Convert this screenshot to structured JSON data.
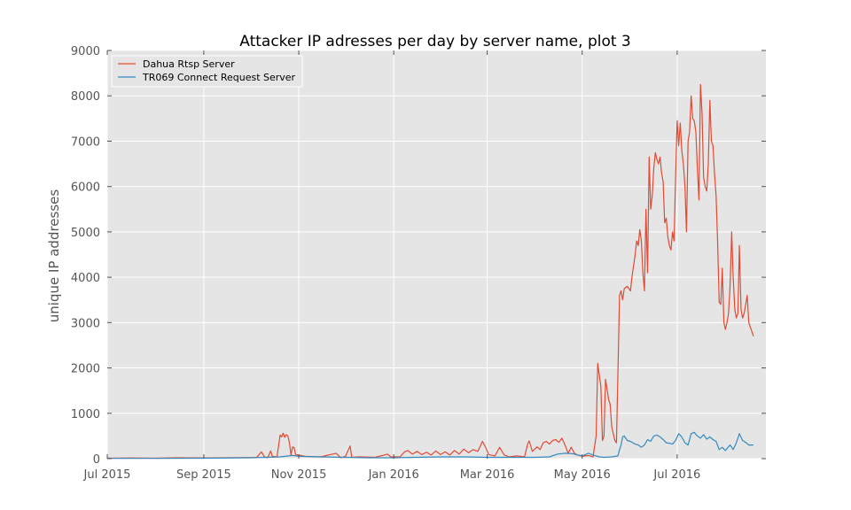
{
  "chart_data": {
    "type": "line",
    "title": "Attacker IP adresses per day by server name, plot 3",
    "xlabel": "",
    "ylabel": "unique IP addresses",
    "xlim": [
      "2015-07-01",
      "2016-08-27"
    ],
    "ylim": [
      0,
      9000
    ],
    "yticks": [
      0,
      1000,
      2000,
      3000,
      4000,
      5000,
      6000,
      7000,
      8000,
      9000
    ],
    "xticks": [
      {
        "date": "2015-07-01",
        "label": "Jul 2015"
      },
      {
        "date": "2015-09-01",
        "label": "Sep 2015"
      },
      {
        "date": "2015-11-01",
        "label": "Nov 2015"
      },
      {
        "date": "2016-01-01",
        "label": "Jan 2016"
      },
      {
        "date": "2016-03-01",
        "label": "Mar 2016"
      },
      {
        "date": "2016-05-01",
        "label": "May 2016"
      },
      {
        "date": "2016-07-01",
        "label": "Jul 2016"
      }
    ],
    "grid": true,
    "background": "#e5e5e5",
    "legend_position": "top-left",
    "series": [
      {
        "name": "Dahua Rtsp Server",
        "color": "#e24a33",
        "points": [
          [
            "2015-07-01",
            10
          ],
          [
            "2015-07-15",
            15
          ],
          [
            "2015-08-01",
            10
          ],
          [
            "2015-08-15",
            20
          ],
          [
            "2015-09-01",
            15
          ],
          [
            "2015-09-15",
            20
          ],
          [
            "2015-10-01",
            25
          ],
          [
            "2015-10-05",
            30
          ],
          [
            "2015-10-08",
            150
          ],
          [
            "2015-10-10",
            40
          ],
          [
            "2015-10-12",
            20
          ],
          [
            "2015-10-14",
            170
          ],
          [
            "2015-10-15",
            50
          ],
          [
            "2015-10-18",
            40
          ],
          [
            "2015-10-20",
            520
          ],
          [
            "2015-10-21",
            480
          ],
          [
            "2015-10-22",
            560
          ],
          [
            "2015-10-23",
            470
          ],
          [
            "2015-10-24",
            530
          ],
          [
            "2015-10-25",
            500
          ],
          [
            "2015-10-26",
            350
          ],
          [
            "2015-10-27",
            80
          ],
          [
            "2015-10-28",
            260
          ],
          [
            "2015-10-29",
            240
          ],
          [
            "2015-10-30",
            90
          ],
          [
            "2015-11-05",
            50
          ],
          [
            "2015-11-15",
            40
          ],
          [
            "2015-11-25",
            120
          ],
          [
            "2015-11-28",
            20
          ],
          [
            "2015-12-01",
            50
          ],
          [
            "2015-12-04",
            280
          ],
          [
            "2015-12-05",
            30
          ],
          [
            "2015-12-10",
            40
          ],
          [
            "2015-12-20",
            30
          ],
          [
            "2015-12-28",
            100
          ],
          [
            "2015-12-30",
            40
          ],
          [
            "2016-01-05",
            40
          ],
          [
            "2016-01-08",
            150
          ],
          [
            "2016-01-10",
            180
          ],
          [
            "2016-01-13",
            100
          ],
          [
            "2016-01-16",
            160
          ],
          [
            "2016-01-19",
            90
          ],
          [
            "2016-01-22",
            140
          ],
          [
            "2016-01-25",
            80
          ],
          [
            "2016-01-28",
            170
          ],
          [
            "2016-01-31",
            90
          ],
          [
            "2016-02-03",
            150
          ],
          [
            "2016-02-06",
            80
          ],
          [
            "2016-02-09",
            180
          ],
          [
            "2016-02-12",
            100
          ],
          [
            "2016-02-15",
            210
          ],
          [
            "2016-02-18",
            130
          ],
          [
            "2016-02-21",
            200
          ],
          [
            "2016-02-24",
            160
          ],
          [
            "2016-02-27",
            380
          ],
          [
            "2016-02-29",
            250
          ],
          [
            "2016-03-02",
            90
          ],
          [
            "2016-03-06",
            60
          ],
          [
            "2016-03-09",
            250
          ],
          [
            "2016-03-12",
            80
          ],
          [
            "2016-03-15",
            40
          ],
          [
            "2016-03-20",
            60
          ],
          [
            "2016-03-25",
            40
          ],
          [
            "2016-03-27",
            330
          ],
          [
            "2016-03-28",
            390
          ],
          [
            "2016-03-30",
            160
          ],
          [
            "2016-04-02",
            260
          ],
          [
            "2016-04-04",
            200
          ],
          [
            "2016-04-06",
            350
          ],
          [
            "2016-04-08",
            380
          ],
          [
            "2016-04-10",
            320
          ],
          [
            "2016-04-12",
            400
          ],
          [
            "2016-04-14",
            420
          ],
          [
            "2016-04-16",
            360
          ],
          [
            "2016-04-18",
            450
          ],
          [
            "2016-04-20",
            300
          ],
          [
            "2016-04-22",
            120
          ],
          [
            "2016-04-24",
            250
          ],
          [
            "2016-04-26",
            120
          ],
          [
            "2016-04-28",
            80
          ],
          [
            "2016-05-01",
            50
          ],
          [
            "2016-05-05",
            70
          ],
          [
            "2016-05-08",
            40
          ],
          [
            "2016-05-10",
            500
          ],
          [
            "2016-05-11",
            2100
          ],
          [
            "2016-05-13",
            1600
          ],
          [
            "2016-05-14",
            400
          ],
          [
            "2016-05-15",
            500
          ],
          [
            "2016-05-16",
            1750
          ],
          [
            "2016-05-18",
            1300
          ],
          [
            "2016-05-19",
            1200
          ],
          [
            "2016-05-20",
            700
          ],
          [
            "2016-05-22",
            400
          ],
          [
            "2016-05-23",
            350
          ],
          [
            "2016-05-25",
            3600
          ],
          [
            "2016-05-26",
            3700
          ],
          [
            "2016-05-27",
            3500
          ],
          [
            "2016-05-28",
            3750
          ],
          [
            "2016-05-30",
            3800
          ],
          [
            "2016-06-01",
            3700
          ],
          [
            "2016-06-02",
            4000
          ],
          [
            "2016-06-04",
            4500
          ],
          [
            "2016-06-05",
            4800
          ],
          [
            "2016-06-06",
            4700
          ],
          [
            "2016-06-07",
            5050
          ],
          [
            "2016-06-08",
            4800
          ],
          [
            "2016-06-09",
            4100
          ],
          [
            "2016-06-10",
            3700
          ],
          [
            "2016-06-11",
            5500
          ],
          [
            "2016-06-12",
            4100
          ],
          [
            "2016-06-13",
            6650
          ],
          [
            "2016-06-14",
            5500
          ],
          [
            "2016-06-15",
            5800
          ],
          [
            "2016-06-16",
            6400
          ],
          [
            "2016-06-17",
            6750
          ],
          [
            "2016-06-18",
            6600
          ],
          [
            "2016-06-19",
            6500
          ],
          [
            "2016-06-20",
            6650
          ],
          [
            "2016-06-21",
            6300
          ],
          [
            "2016-06-22",
            6100
          ],
          [
            "2016-06-23",
            5200
          ],
          [
            "2016-06-24",
            5300
          ],
          [
            "2016-06-25",
            4900
          ],
          [
            "2016-06-26",
            4700
          ],
          [
            "2016-06-27",
            4600
          ],
          [
            "2016-06-28",
            5000
          ],
          [
            "2016-06-29",
            4800
          ],
          [
            "2016-06-30",
            6200
          ],
          [
            "2016-07-01",
            7450
          ],
          [
            "2016-07-02",
            6900
          ],
          [
            "2016-07-03",
            7400
          ],
          [
            "2016-07-04",
            6800
          ],
          [
            "2016-07-05",
            6500
          ],
          [
            "2016-07-06",
            6000
          ],
          [
            "2016-07-07",
            5000
          ],
          [
            "2016-07-08",
            7000
          ],
          [
            "2016-07-09",
            7200
          ],
          [
            "2016-07-10",
            8000
          ],
          [
            "2016-07-11",
            7500
          ],
          [
            "2016-07-12",
            7450
          ],
          [
            "2016-07-13",
            7200
          ],
          [
            "2016-07-14",
            6400
          ],
          [
            "2016-07-15",
            5700
          ],
          [
            "2016-07-16",
            8250
          ],
          [
            "2016-07-17",
            7600
          ],
          [
            "2016-07-18",
            6200
          ],
          [
            "2016-07-19",
            6000
          ],
          [
            "2016-07-20",
            5900
          ],
          [
            "2016-07-21",
            6500
          ],
          [
            "2016-07-22",
            7900
          ],
          [
            "2016-07-23",
            7000
          ],
          [
            "2016-07-24",
            6900
          ],
          [
            "2016-07-25",
            6300
          ],
          [
            "2016-07-26",
            5800
          ],
          [
            "2016-07-27",
            4800
          ],
          [
            "2016-07-28",
            3450
          ],
          [
            "2016-07-29",
            3400
          ],
          [
            "2016-07-30",
            4200
          ],
          [
            "2016-07-31",
            3000
          ],
          [
            "2016-08-01",
            2850
          ],
          [
            "2016-08-02",
            3000
          ],
          [
            "2016-08-03",
            3200
          ],
          [
            "2016-08-04",
            3800
          ],
          [
            "2016-08-05",
            5000
          ],
          [
            "2016-08-06",
            4000
          ],
          [
            "2016-08-07",
            3300
          ],
          [
            "2016-08-08",
            3100
          ],
          [
            "2016-08-09",
            3200
          ],
          [
            "2016-08-10",
            4700
          ],
          [
            "2016-08-11",
            3300
          ],
          [
            "2016-08-12",
            3100
          ],
          [
            "2016-08-13",
            3200
          ],
          [
            "2016-08-14",
            3400
          ],
          [
            "2016-08-15",
            3600
          ],
          [
            "2016-08-16",
            3000
          ],
          [
            "2016-08-17",
            2900
          ],
          [
            "2016-08-18",
            2800
          ],
          [
            "2016-08-19",
            2700
          ]
        ]
      },
      {
        "name": "TR069 Connect Request Server",
        "color": "#348abd",
        "points": [
          [
            "2015-07-01",
            5
          ],
          [
            "2015-08-01",
            5
          ],
          [
            "2015-09-01",
            10
          ],
          [
            "2015-10-01",
            20
          ],
          [
            "2015-10-20",
            40
          ],
          [
            "2015-10-28",
            70
          ],
          [
            "2015-11-01",
            50
          ],
          [
            "2015-11-15",
            40
          ],
          [
            "2015-12-01",
            30
          ],
          [
            "2015-12-15",
            20
          ],
          [
            "2016-01-01",
            20
          ],
          [
            "2016-01-15",
            30
          ],
          [
            "2016-02-01",
            40
          ],
          [
            "2016-02-15",
            40
          ],
          [
            "2016-03-01",
            30
          ],
          [
            "2016-03-15",
            30
          ],
          [
            "2016-04-01",
            30
          ],
          [
            "2016-04-10",
            40
          ],
          [
            "2016-04-15",
            100
          ],
          [
            "2016-04-20",
            120
          ],
          [
            "2016-04-25",
            110
          ],
          [
            "2016-04-28",
            80
          ],
          [
            "2016-05-01",
            60
          ],
          [
            "2016-05-05",
            120
          ],
          [
            "2016-05-08",
            80
          ],
          [
            "2016-05-12",
            40
          ],
          [
            "2016-05-15",
            30
          ],
          [
            "2016-05-20",
            40
          ],
          [
            "2016-05-24",
            60
          ],
          [
            "2016-05-25",
            200
          ],
          [
            "2016-05-26",
            300
          ],
          [
            "2016-05-27",
            480
          ],
          [
            "2016-05-28",
            500
          ],
          [
            "2016-05-30",
            400
          ],
          [
            "2016-06-01",
            380
          ],
          [
            "2016-06-04",
            320
          ],
          [
            "2016-06-06",
            300
          ],
          [
            "2016-06-08",
            250
          ],
          [
            "2016-06-10",
            300
          ],
          [
            "2016-06-12",
            420
          ],
          [
            "2016-06-14",
            380
          ],
          [
            "2016-06-16",
            500
          ],
          [
            "2016-06-18",
            520
          ],
          [
            "2016-06-20",
            480
          ],
          [
            "2016-06-22",
            420
          ],
          [
            "2016-06-24",
            350
          ],
          [
            "2016-06-26",
            340
          ],
          [
            "2016-06-28",
            320
          ],
          [
            "2016-06-30",
            400
          ],
          [
            "2016-07-02",
            550
          ],
          [
            "2016-07-04",
            480
          ],
          [
            "2016-07-06",
            350
          ],
          [
            "2016-07-08",
            300
          ],
          [
            "2016-07-10",
            550
          ],
          [
            "2016-07-12",
            580
          ],
          [
            "2016-07-14",
            500
          ],
          [
            "2016-07-16",
            450
          ],
          [
            "2016-07-18",
            530
          ],
          [
            "2016-07-20",
            430
          ],
          [
            "2016-07-22",
            480
          ],
          [
            "2016-07-24",
            420
          ],
          [
            "2016-07-26",
            380
          ],
          [
            "2016-07-28",
            200
          ],
          [
            "2016-07-30",
            250
          ],
          [
            "2016-08-01",
            180
          ],
          [
            "2016-08-04",
            300
          ],
          [
            "2016-08-06",
            200
          ],
          [
            "2016-08-08",
            350
          ],
          [
            "2016-08-10",
            550
          ],
          [
            "2016-08-12",
            400
          ],
          [
            "2016-08-14",
            360
          ],
          [
            "2016-08-16",
            300
          ],
          [
            "2016-08-19",
            300
          ]
        ]
      }
    ]
  }
}
